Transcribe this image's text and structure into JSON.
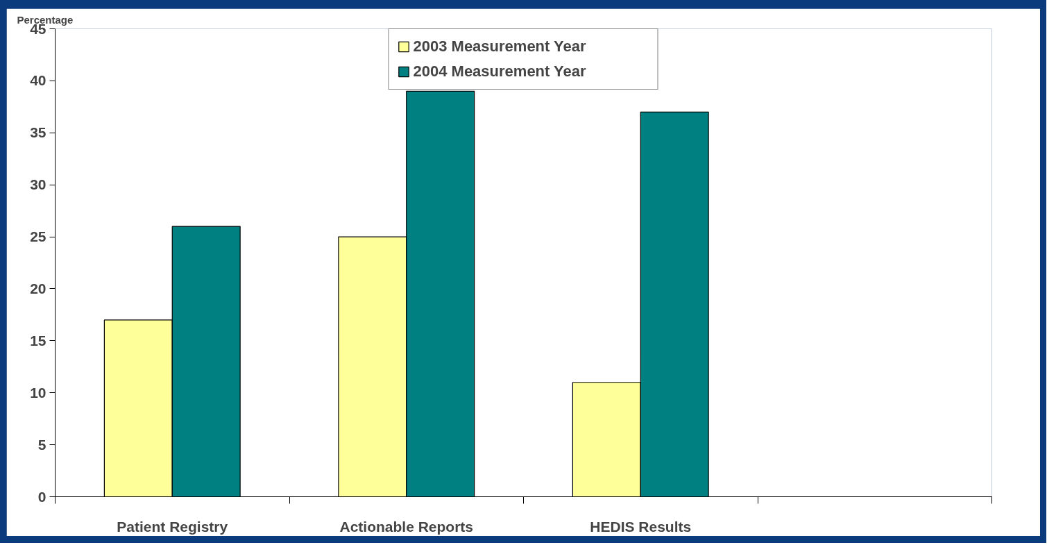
{
  "chart_data": {
    "type": "bar",
    "ylabel": "Percentage",
    "categories": [
      "Patient Registry",
      "Actionable Reports",
      "HEDIS Results",
      null
    ],
    "series": [
      {
        "name": "2003 Measurement Year",
        "color": "#ffff99",
        "values": [
          17,
          25,
          11,
          null
        ]
      },
      {
        "name": "2004 Measurement Year",
        "color": "#008080",
        "values": [
          26,
          39,
          37,
          null
        ]
      }
    ],
    "ylim": [
      0,
      45
    ],
    "yticks": [
      0,
      5,
      10,
      15,
      20,
      25,
      30,
      35,
      40,
      45
    ],
    "grid": false,
    "legend": "top"
  }
}
